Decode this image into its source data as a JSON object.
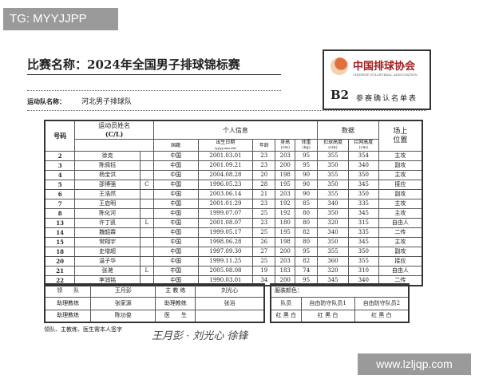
{
  "overlay": {
    "tg": "TG: MYYJJPP",
    "watermark": "www.lzljqp.com"
  },
  "doc": {
    "title": "比赛名称：2024年全国男子排球锦标赛",
    "team_label": "运动队名称：",
    "team_name": "河北男子排球队",
    "logo_cn": "中国排球协会",
    "logo_en": "CHINESE VOLLEYBALL ASSOCIATION",
    "form_code": "B2",
    "form_title": "参赛确认名单表"
  },
  "headers": {
    "number": "号码",
    "name": "运动员姓名",
    "cl": "(C/L)",
    "personal": "个人信息",
    "data": "数据",
    "position1": "场上",
    "position2": "位置",
    "nationality": "国籍",
    "birth": "出生日期",
    "birth_fmt": "(yyyy.mm.dd)",
    "age": "年龄",
    "height": "身高",
    "height_u": "(cm)",
    "weight": "体重",
    "weight_u": "(kg)",
    "spike": "扣球高度",
    "spike_u": "(cm)",
    "block": "拦网高度",
    "block_u": "(cm)"
  },
  "players": [
    [
      "2",
      "徐克",
      "",
      "中国",
      "2001.03.01",
      "23",
      "203",
      "95",
      "355",
      "354",
      "主攻"
    ],
    [
      "3",
      "陈佩钰",
      "",
      "中国",
      "2001.09.21",
      "23",
      "200",
      "95",
      "350",
      "340",
      "副攻"
    ],
    [
      "4",
      "杨宝洪",
      "",
      "中国",
      "2004.08.28",
      "20",
      "198",
      "90",
      "355",
      "350",
      "主攻"
    ],
    [
      "5",
      "邵博强",
      "C",
      "中国",
      "1996.05.23",
      "28",
      "195",
      "90",
      "350",
      "345",
      "接应"
    ],
    [
      "6",
      "王浩然",
      "",
      "中国",
      "2003.06.14",
      "21",
      "203",
      "90",
      "355",
      "350",
      "副攻"
    ],
    [
      "7",
      "王启明",
      "",
      "中国",
      "2001.01.29",
      "23",
      "192",
      "85",
      "340",
      "335",
      "主攻"
    ],
    [
      "8",
      "陈化河",
      "",
      "中国",
      "1999.07.07",
      "25",
      "192",
      "80",
      "350",
      "345",
      "主攻"
    ],
    [
      "13",
      "许丁凯",
      "L",
      "中国",
      "2001.08.07",
      "23",
      "180",
      "80",
      "320",
      "315",
      "自由人"
    ],
    [
      "14",
      "魏韶霖",
      "",
      "中国",
      "1999.05.17",
      "25",
      "195",
      "82",
      "340",
      "335",
      "二传"
    ],
    [
      "15",
      "常翔宇",
      "",
      "中国",
      "1998.06.28",
      "26",
      "198",
      "80",
      "350",
      "345",
      "主攻"
    ],
    [
      "18",
      "史增超",
      "",
      "中国",
      "1997.09.30",
      "27",
      "200",
      "95",
      "355",
      "350",
      "副攻"
    ],
    [
      "20",
      "温子华",
      "",
      "中国",
      "1999.11.25",
      "25",
      "203",
      "82",
      "360",
      "355",
      "接应"
    ],
    [
      "21",
      "张滟",
      "L",
      "中国",
      "2005.08.08",
      "19",
      "183",
      "74",
      "320",
      "310",
      "自由人"
    ],
    [
      "22",
      "李润铭",
      "",
      "中国",
      "1990.03.01",
      "34",
      "200",
      "95",
      "345",
      "340",
      "二传"
    ]
  ],
  "staff": {
    "leader_label": "领　　队",
    "leader": "王月彭",
    "head_coach_label": "主 教 练",
    "head_coach": "刘光心",
    "asst1_label": "助理教练",
    "asst1": "张家源",
    "asst2_label": "助理教练",
    "asst2": "张浴",
    "asst3_label": "助理教练",
    "asst3": "陈功俊",
    "doctor_label": "医　　生",
    "doctor": ""
  },
  "kit": {
    "label": "服装颜色：",
    "players": "队员",
    "libero1": "自由防守队员1",
    "libero2": "自由防守队员2",
    "c1": "红 黑 白",
    "c2": "红 黑 白",
    "c3": "红 黑 白"
  },
  "signature": {
    "note": "领队、主教练、医生需本人签字",
    "hand": "王月彭 · 刘光心 徐锋"
  }
}
